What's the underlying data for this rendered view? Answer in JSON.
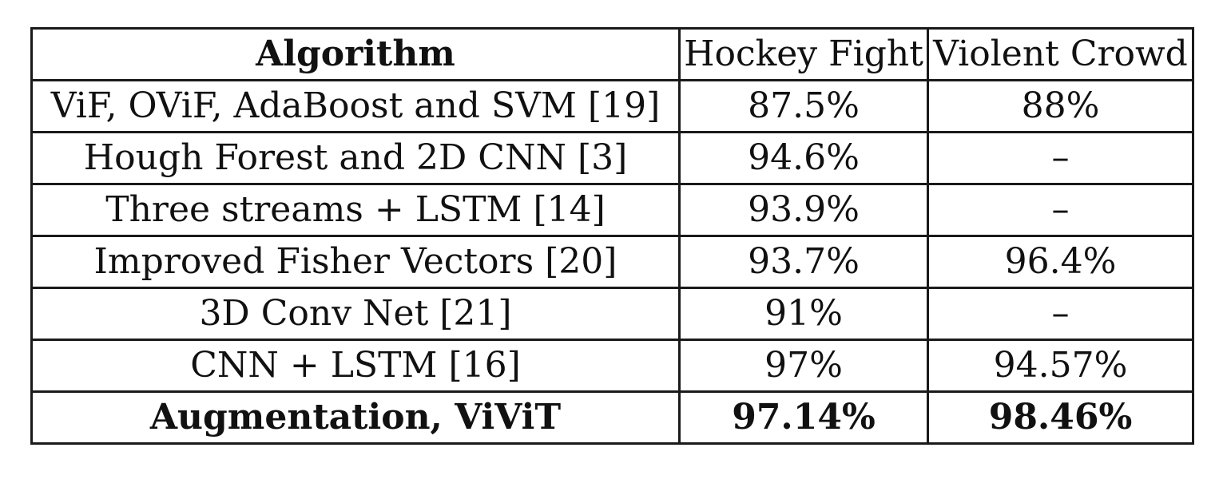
{
  "table": {
    "headers": [
      "Algorithm",
      "Hockey Fight",
      "Violent Crowd"
    ],
    "rows": [
      [
        "ViF, OViF, AdaBoost and SVM [19]",
        "87.5%",
        "88%"
      ],
      [
        "Hough Forest and 2D CNN [3]",
        "94.6%",
        "–"
      ],
      [
        "Three streams + LSTM [14]",
        "93.9%",
        "–"
      ],
      [
        "Improved Fisher Vectors [20]",
        "93.7%",
        "96.4%"
      ],
      [
        "3D Conv Net [21]",
        "91%",
        "–"
      ],
      [
        "CNN + LSTM [16]",
        "97%",
        "94.57%"
      ],
      [
        "Augmentation, ViViT",
        "97.14%",
        "98.46%"
      ]
    ]
  }
}
